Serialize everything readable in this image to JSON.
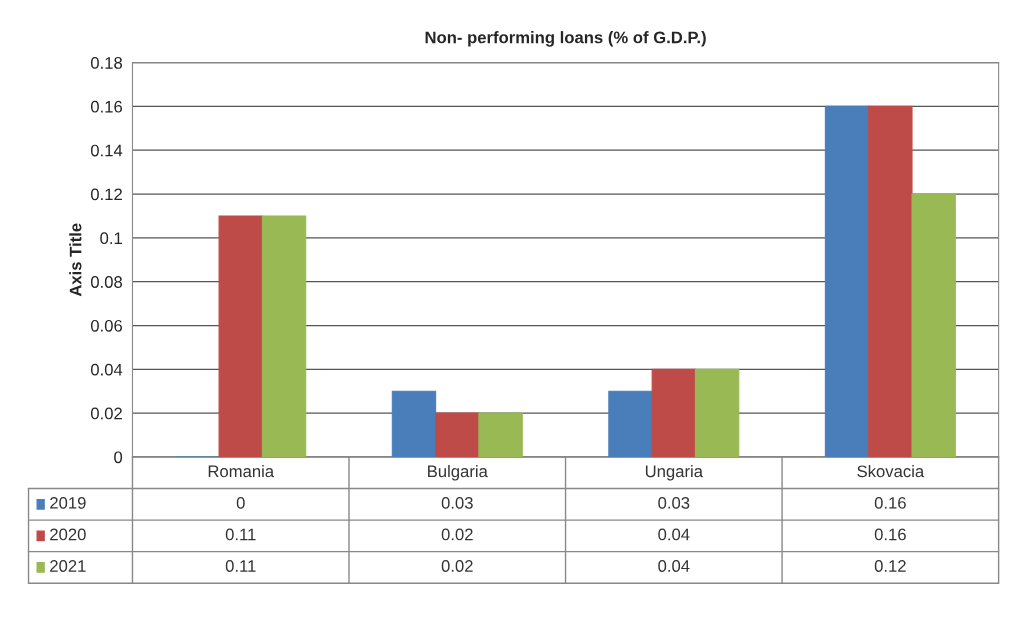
{
  "chart_data": {
    "type": "bar",
    "title": "Non- performing loans (% of G.D.P.)",
    "ylabel": "Axis Title",
    "categories": [
      "Romania",
      "Bulgaria",
      "Ungaria",
      "Skovacia"
    ],
    "series": [
      {
        "name": "2019",
        "color": "#4a7ebb",
        "values": [
          0,
          0.03,
          0.03,
          0.16
        ]
      },
      {
        "name": "2020",
        "color": "#be4b48",
        "values": [
          0.11,
          0.02,
          0.04,
          0.16
        ]
      },
      {
        "name": "2021",
        "color": "#98b954",
        "values": [
          0.11,
          0.02,
          0.04,
          0.12
        ]
      }
    ],
    "ylim": [
      0,
      0.18
    ],
    "yticks": [
      0,
      0.02,
      0.04,
      0.06,
      0.08,
      0.1,
      0.12,
      0.14,
      0.16,
      0.18
    ],
    "grid": "y",
    "legend": "bottom",
    "data_labels": true
  }
}
